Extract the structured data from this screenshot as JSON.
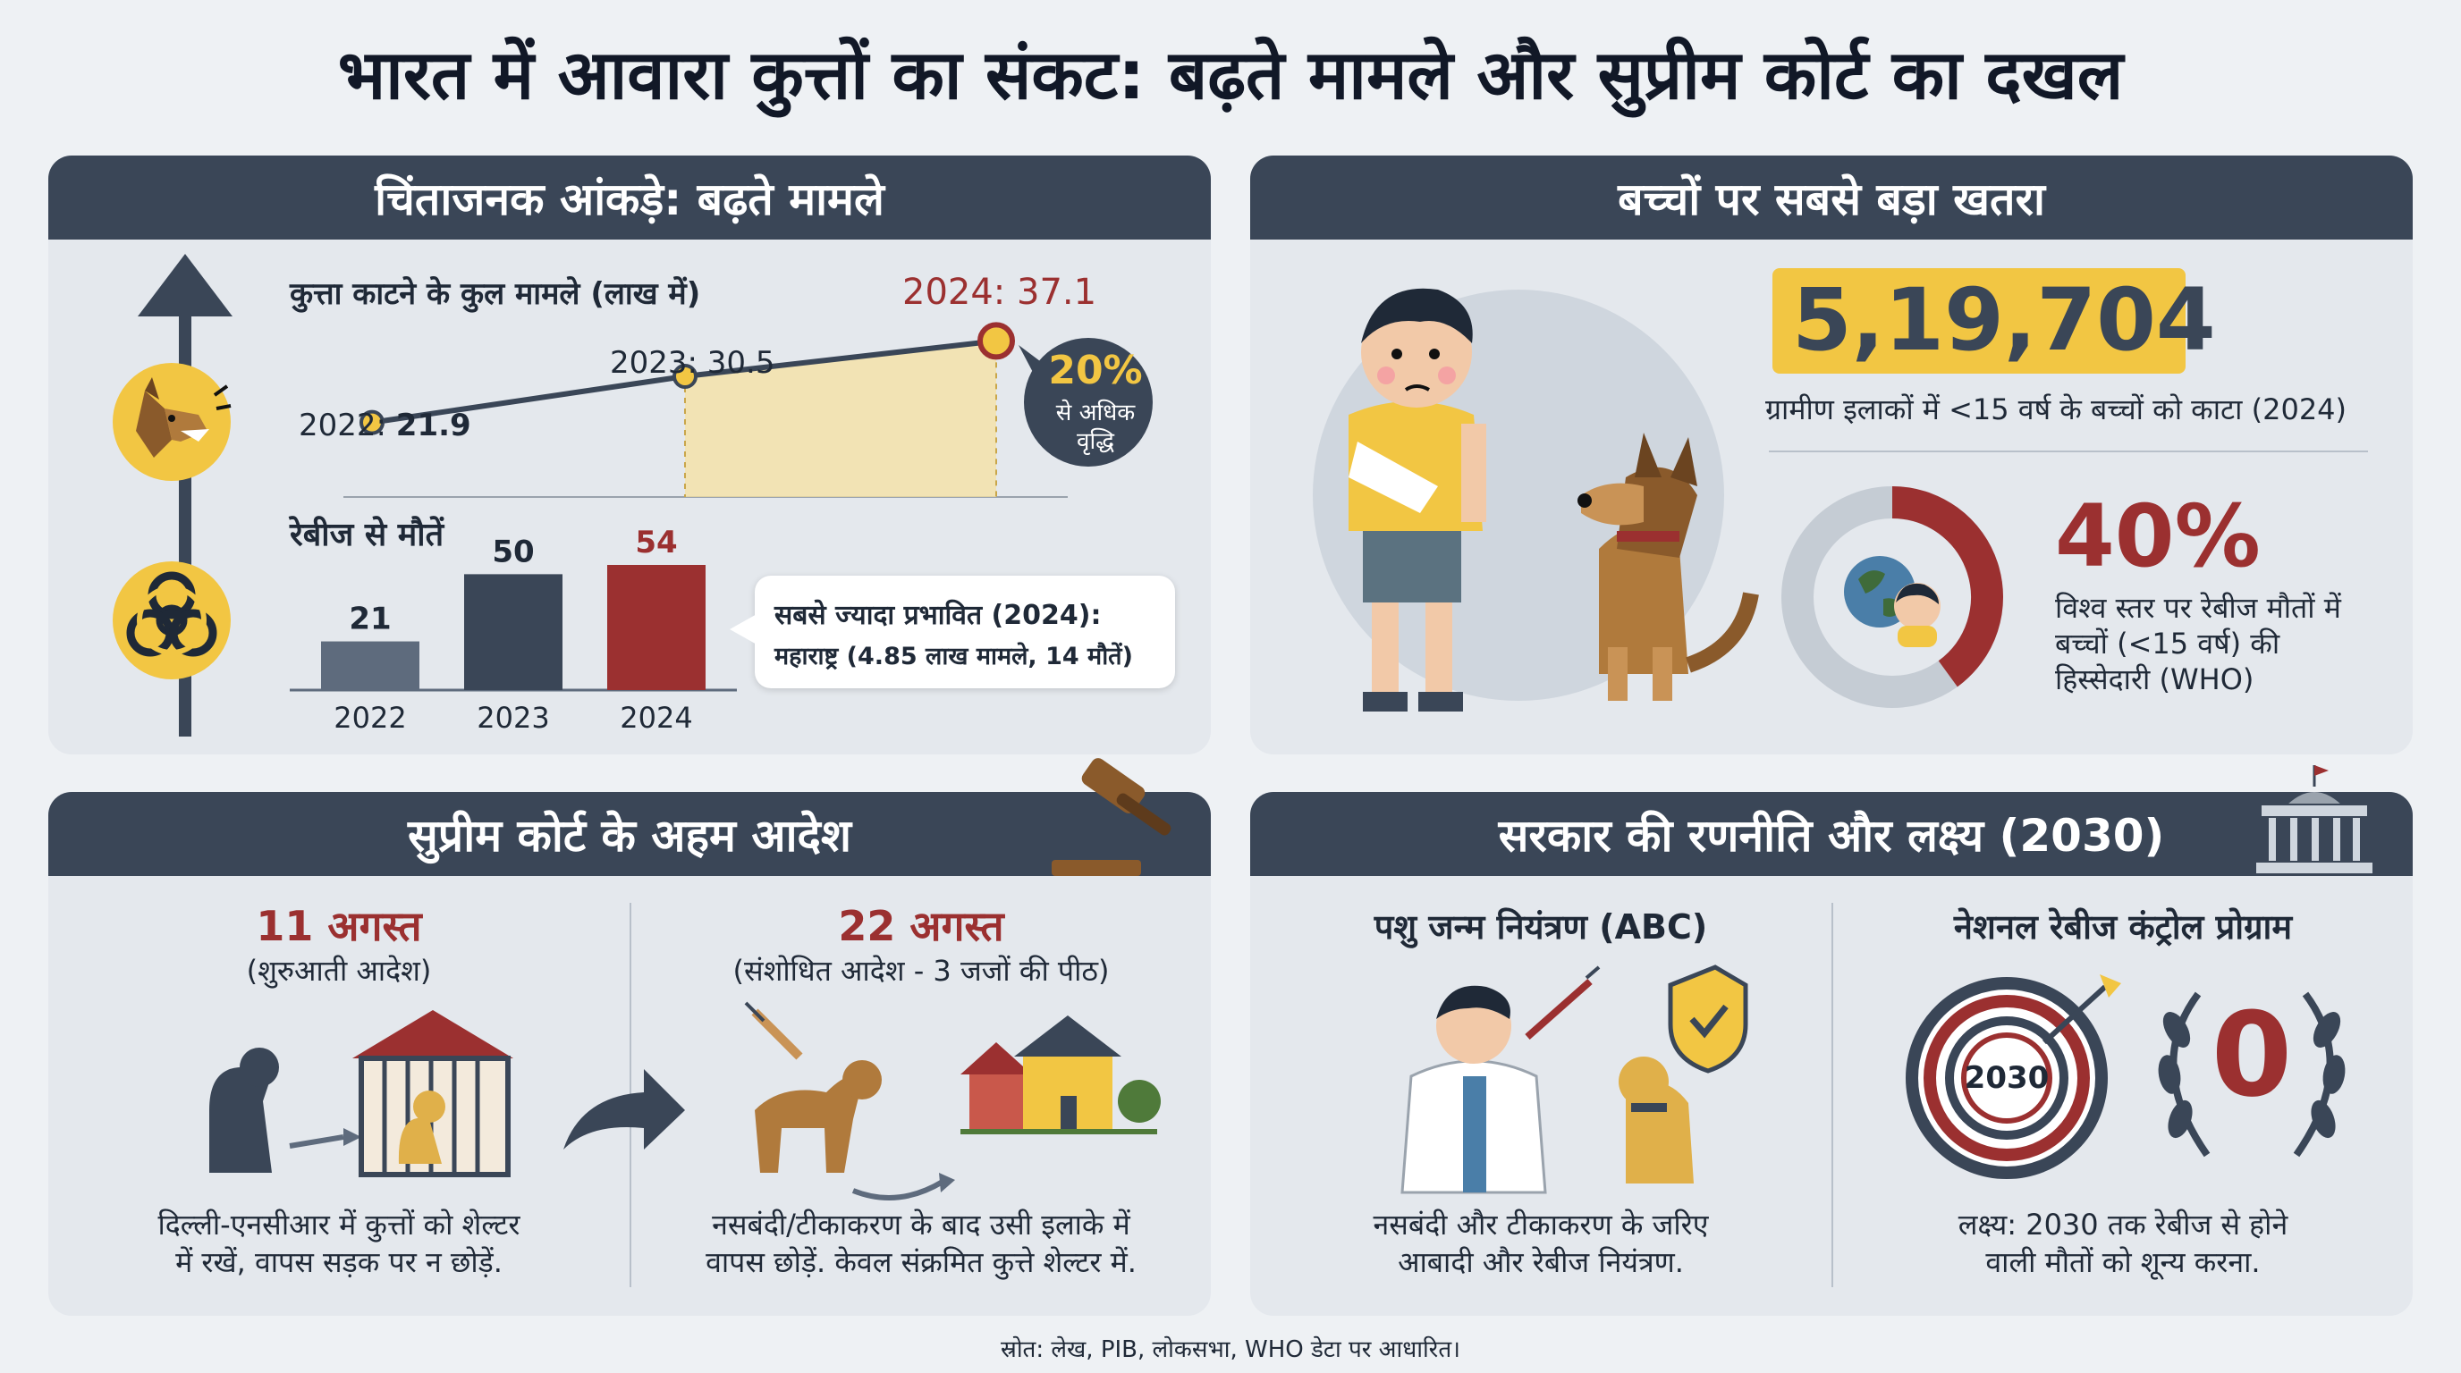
{
  "title": "भारत में आवारा कुत्तों का संकट: बढ़ते मामले और सुप्रीम कोर्ट का दखल",
  "stats_panel": {
    "heading": "चिंताजनक आंकड़े: बढ़ते मामले",
    "bites_title": "कुत्ता काटने के कुल मामले (लाख में)",
    "bites_labels": {
      "l2022_year": "2022:",
      "l2022_val": "21.9",
      "l2023": "2023: 30.5",
      "l2024": "2024: 37.1"
    },
    "growth_badge": {
      "pct": "20%",
      "text1": "से अधिक",
      "text2": "वृद्धि"
    },
    "deaths_title": "रेबीज से मौतें",
    "deaths_values": [
      "21",
      "50",
      "54"
    ],
    "deaths_years": [
      "2022",
      "2023",
      "2024"
    ],
    "callout": {
      "line1": "सबसे ज्यादा प्रभावित (2024):",
      "line2": "महाराष्ट्र (4.85 लाख मामले, 14 मौतें)"
    }
  },
  "chart_data": [
    {
      "type": "line",
      "title": "कुत्ता काटने के कुल मामले (लाख में)",
      "x": [
        "2022",
        "2023",
        "2024"
      ],
      "series": [
        {
          "values": [
            21.9,
            30.5,
            37.1
          ]
        }
      ]
    },
    {
      "type": "bar",
      "title": "रेबीज से मौतें",
      "categories": [
        "2022",
        "2023",
        "2024"
      ],
      "values": [
        21,
        50,
        54
      ],
      "colors": [
        "#5e6b7d",
        "#3a4657",
        "#9b3030"
      ]
    }
  ],
  "children_panel": {
    "heading": "बच्चों पर सबसे बड़ा खतरा",
    "big_number": "5,19,704",
    "big_caption": "ग्रामीण इलाकों में <15 वर्ष के बच्चों को काटा (2024)",
    "pct": "40%",
    "pct_value": 0.4,
    "pct_caption1": "विश्व स्तर पर रेबीज मौतों में",
    "pct_caption2": "बच्चों (<15 वर्ष) की",
    "pct_caption3": "हिस्सेदारी (WHO)"
  },
  "court_panel": {
    "heading": "सुप्रीम कोर्ट के अहम आदेश",
    "order1": {
      "date": "11 अगस्त",
      "sub": "(शुरुआती आदेश)",
      "desc1": "दिल्ली-एनसीआर में कुत्तों को शेल्टर",
      "desc2": "में रखें, वापस सड़क पर न छोड़ें."
    },
    "order2": {
      "date": "22 अगस्त",
      "sub": "(संशोधित आदेश - 3 जजों की पीठ)",
      "desc1": "नसबंदी/टीकाकरण के बाद उसी इलाके में",
      "desc2": "वापस छोड़ें. केवल संक्रमित कुत्ते शेल्टर में."
    }
  },
  "govt_panel": {
    "heading": "सरकार की रणनीति और लक्ष्य (2030)",
    "abc": {
      "title": "पशु जन्म नियंत्रण (ABC)",
      "desc1": "नसबंदी और टीकाकरण के जरिए",
      "desc2": "आबादी और रेबीज नियंत्रण."
    },
    "nrcp": {
      "title": "नेशनल रेबीज कंट्रोल प्रोग्राम",
      "target_year": "2030",
      "zero": "0",
      "desc1": "लक्ष्य: 2030 तक रेबीज से होने",
      "desc2": "वाली मौतों को शून्य करना."
    }
  },
  "source": "स्रोत: लेख, PIB, लोकसभा, WHO डेटा पर आधारित।"
}
